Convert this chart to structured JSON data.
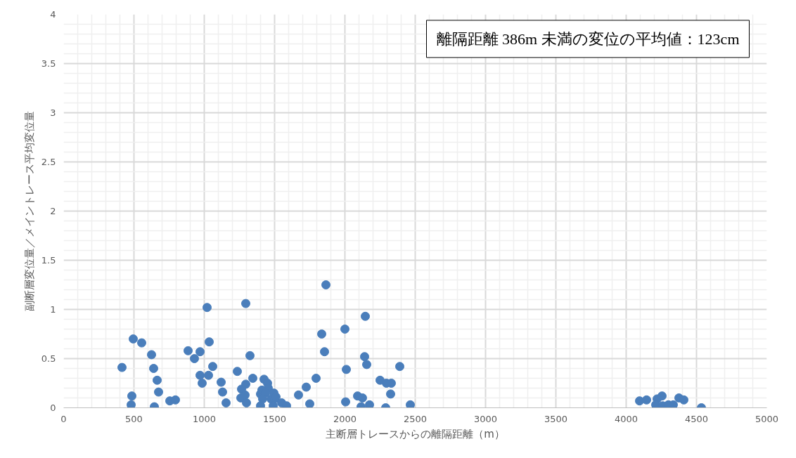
{
  "chart_data": {
    "type": "scatter",
    "xlabel": "主断層トレースからの離隔距離（m）",
    "ylabel": "副断層変位量／メイントレース平均変位量",
    "annotations": [
      "離隔距離 386m 未満の変位の平均値：123cm"
    ],
    "series": [
      {
        "color": "#4a7ebb",
        "x": [
          415,
          495,
          555,
          485,
          480,
          625,
          640,
          665,
          675,
          645,
          755,
          795,
          885,
          930,
          970,
          970,
          985,
          1020,
          1035,
          1030,
          1060,
          1120,
          1130,
          1155,
          1235,
          1260,
          1295,
          1265,
          1290,
          1295,
          1300,
          1325,
          1345,
          1400,
          1400,
          1425,
          1450,
          1455,
          1410,
          1435,
          1415,
          1475,
          1500,
          1490,
          1495,
          1510,
          1550,
          1585,
          1670,
          1725,
          1750,
          1795,
          1835,
          1855,
          1865,
          2000,
          2010,
          2005,
          2090,
          2115,
          2125,
          2145,
          2140,
          2155,
          2175,
          2250,
          2295,
          2330,
          2325,
          2290,
          2390,
          2465,
          4095,
          4145,
          4220,
          4255,
          4210,
          4260,
          4300,
          4335,
          4375,
          4410,
          4535
        ],
        "values": [
          0.41,
          0.7,
          0.66,
          0.12,
          0.03,
          0.54,
          0.4,
          0.28,
          0.16,
          0.01,
          0.07,
          0.08,
          0.58,
          0.5,
          0.57,
          0.33,
          0.25,
          1.02,
          0.67,
          0.33,
          0.42,
          0.26,
          0.16,
          0.05,
          0.37,
          0.1,
          1.06,
          0.19,
          0.13,
          0.24,
          0.05,
          0.53,
          0.3,
          0.14,
          0.02,
          0.29,
          0.25,
          0.2,
          0.18,
          0.15,
          0.09,
          0.09,
          0.09,
          0.02,
          0.15,
          0.11,
          0.05,
          0.02,
          0.13,
          0.21,
          0.04,
          0.3,
          0.75,
          0.57,
          1.25,
          0.8,
          0.39,
          0.06,
          0.12,
          0.01,
          0.1,
          0.93,
          0.52,
          0.44,
          0.03,
          0.28,
          0.25,
          0.25,
          0.14,
          0.0,
          0.42,
          0.03,
          0.07,
          0.08,
          0.09,
          0.12,
          0.03,
          0.02,
          0.03,
          0.03,
          0.1,
          0.08,
          0.0
        ]
      }
    ],
    "xlim": [
      0,
      5000
    ],
    "xticks": [
      0,
      500,
      1000,
      1500,
      2000,
      2500,
      3000,
      3500,
      4000,
      4500,
      5000
    ],
    "ylim": [
      0,
      4
    ],
    "yticks": [
      0,
      0.5,
      1,
      1.5,
      2,
      2.5,
      3,
      3.5,
      4
    ],
    "grid": true,
    "marker": "circle"
  }
}
